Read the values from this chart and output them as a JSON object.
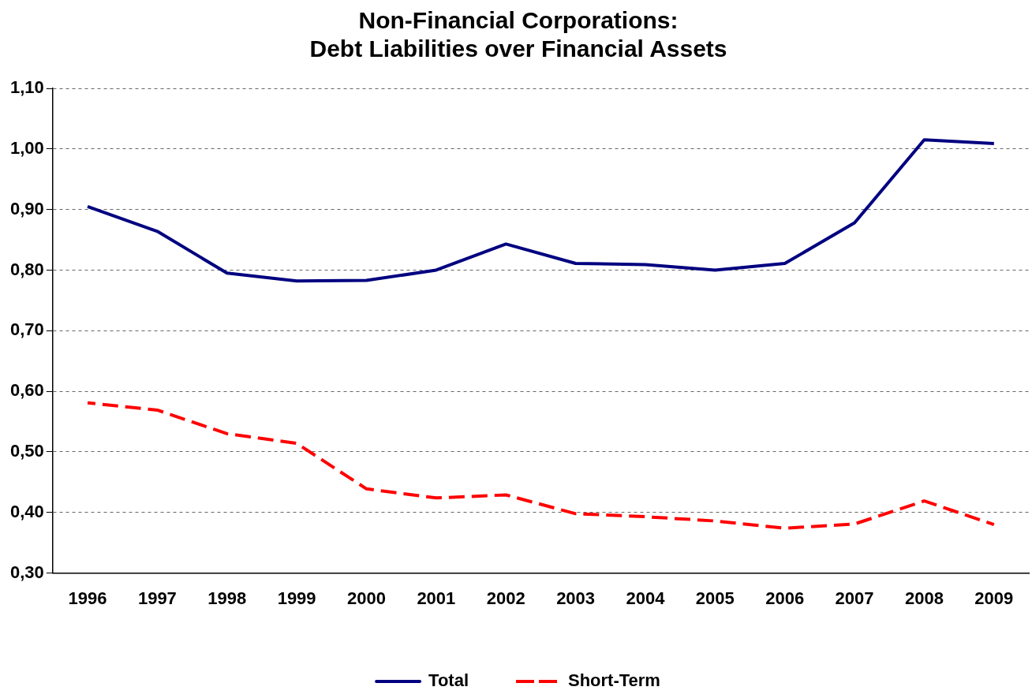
{
  "chart_data": {
    "type": "line",
    "title": [
      "Non-Financial Corporations:",
      "Debt Liabilities over Financial Assets"
    ],
    "categories": [
      "1996",
      "1997",
      "1998",
      "1999",
      "2000",
      "2001",
      "2002",
      "2003",
      "2004",
      "2005",
      "2006",
      "2007",
      "2008",
      "2009"
    ],
    "series": [
      {
        "name": "Total",
        "color": "#000080",
        "line_style": "solid",
        "values": [
          0.905,
          0.864,
          0.795,
          0.782,
          0.783,
          0.8,
          0.843,
          0.811,
          0.809,
          0.8,
          0.811,
          0.878,
          1.015,
          1.009
        ]
      },
      {
        "name": "Short-Term",
        "color": "#ff0000",
        "line_style": "dashed",
        "values": [
          0.581,
          0.569,
          0.53,
          0.514,
          0.439,
          0.424,
          0.429,
          0.398,
          0.393,
          0.386,
          0.374,
          0.381,
          0.419,
          0.38
        ]
      }
    ],
    "ylim": [
      0.3,
      1.1
    ],
    "yticks": [
      {
        "value": 0.3,
        "label": "0,30"
      },
      {
        "value": 0.4,
        "label": "0,40"
      },
      {
        "value": 0.5,
        "label": "0,50"
      },
      {
        "value": 0.6,
        "label": "0,60"
      },
      {
        "value": 0.7,
        "label": "0,70"
      },
      {
        "value": 0.8,
        "label": "0,80"
      },
      {
        "value": 0.9,
        "label": "0,90"
      },
      {
        "value": 1.0,
        "label": "1,00"
      },
      {
        "value": 1.1,
        "label": "1,10"
      }
    ],
    "grid": "y",
    "legend": "bottom",
    "marker": "none"
  }
}
